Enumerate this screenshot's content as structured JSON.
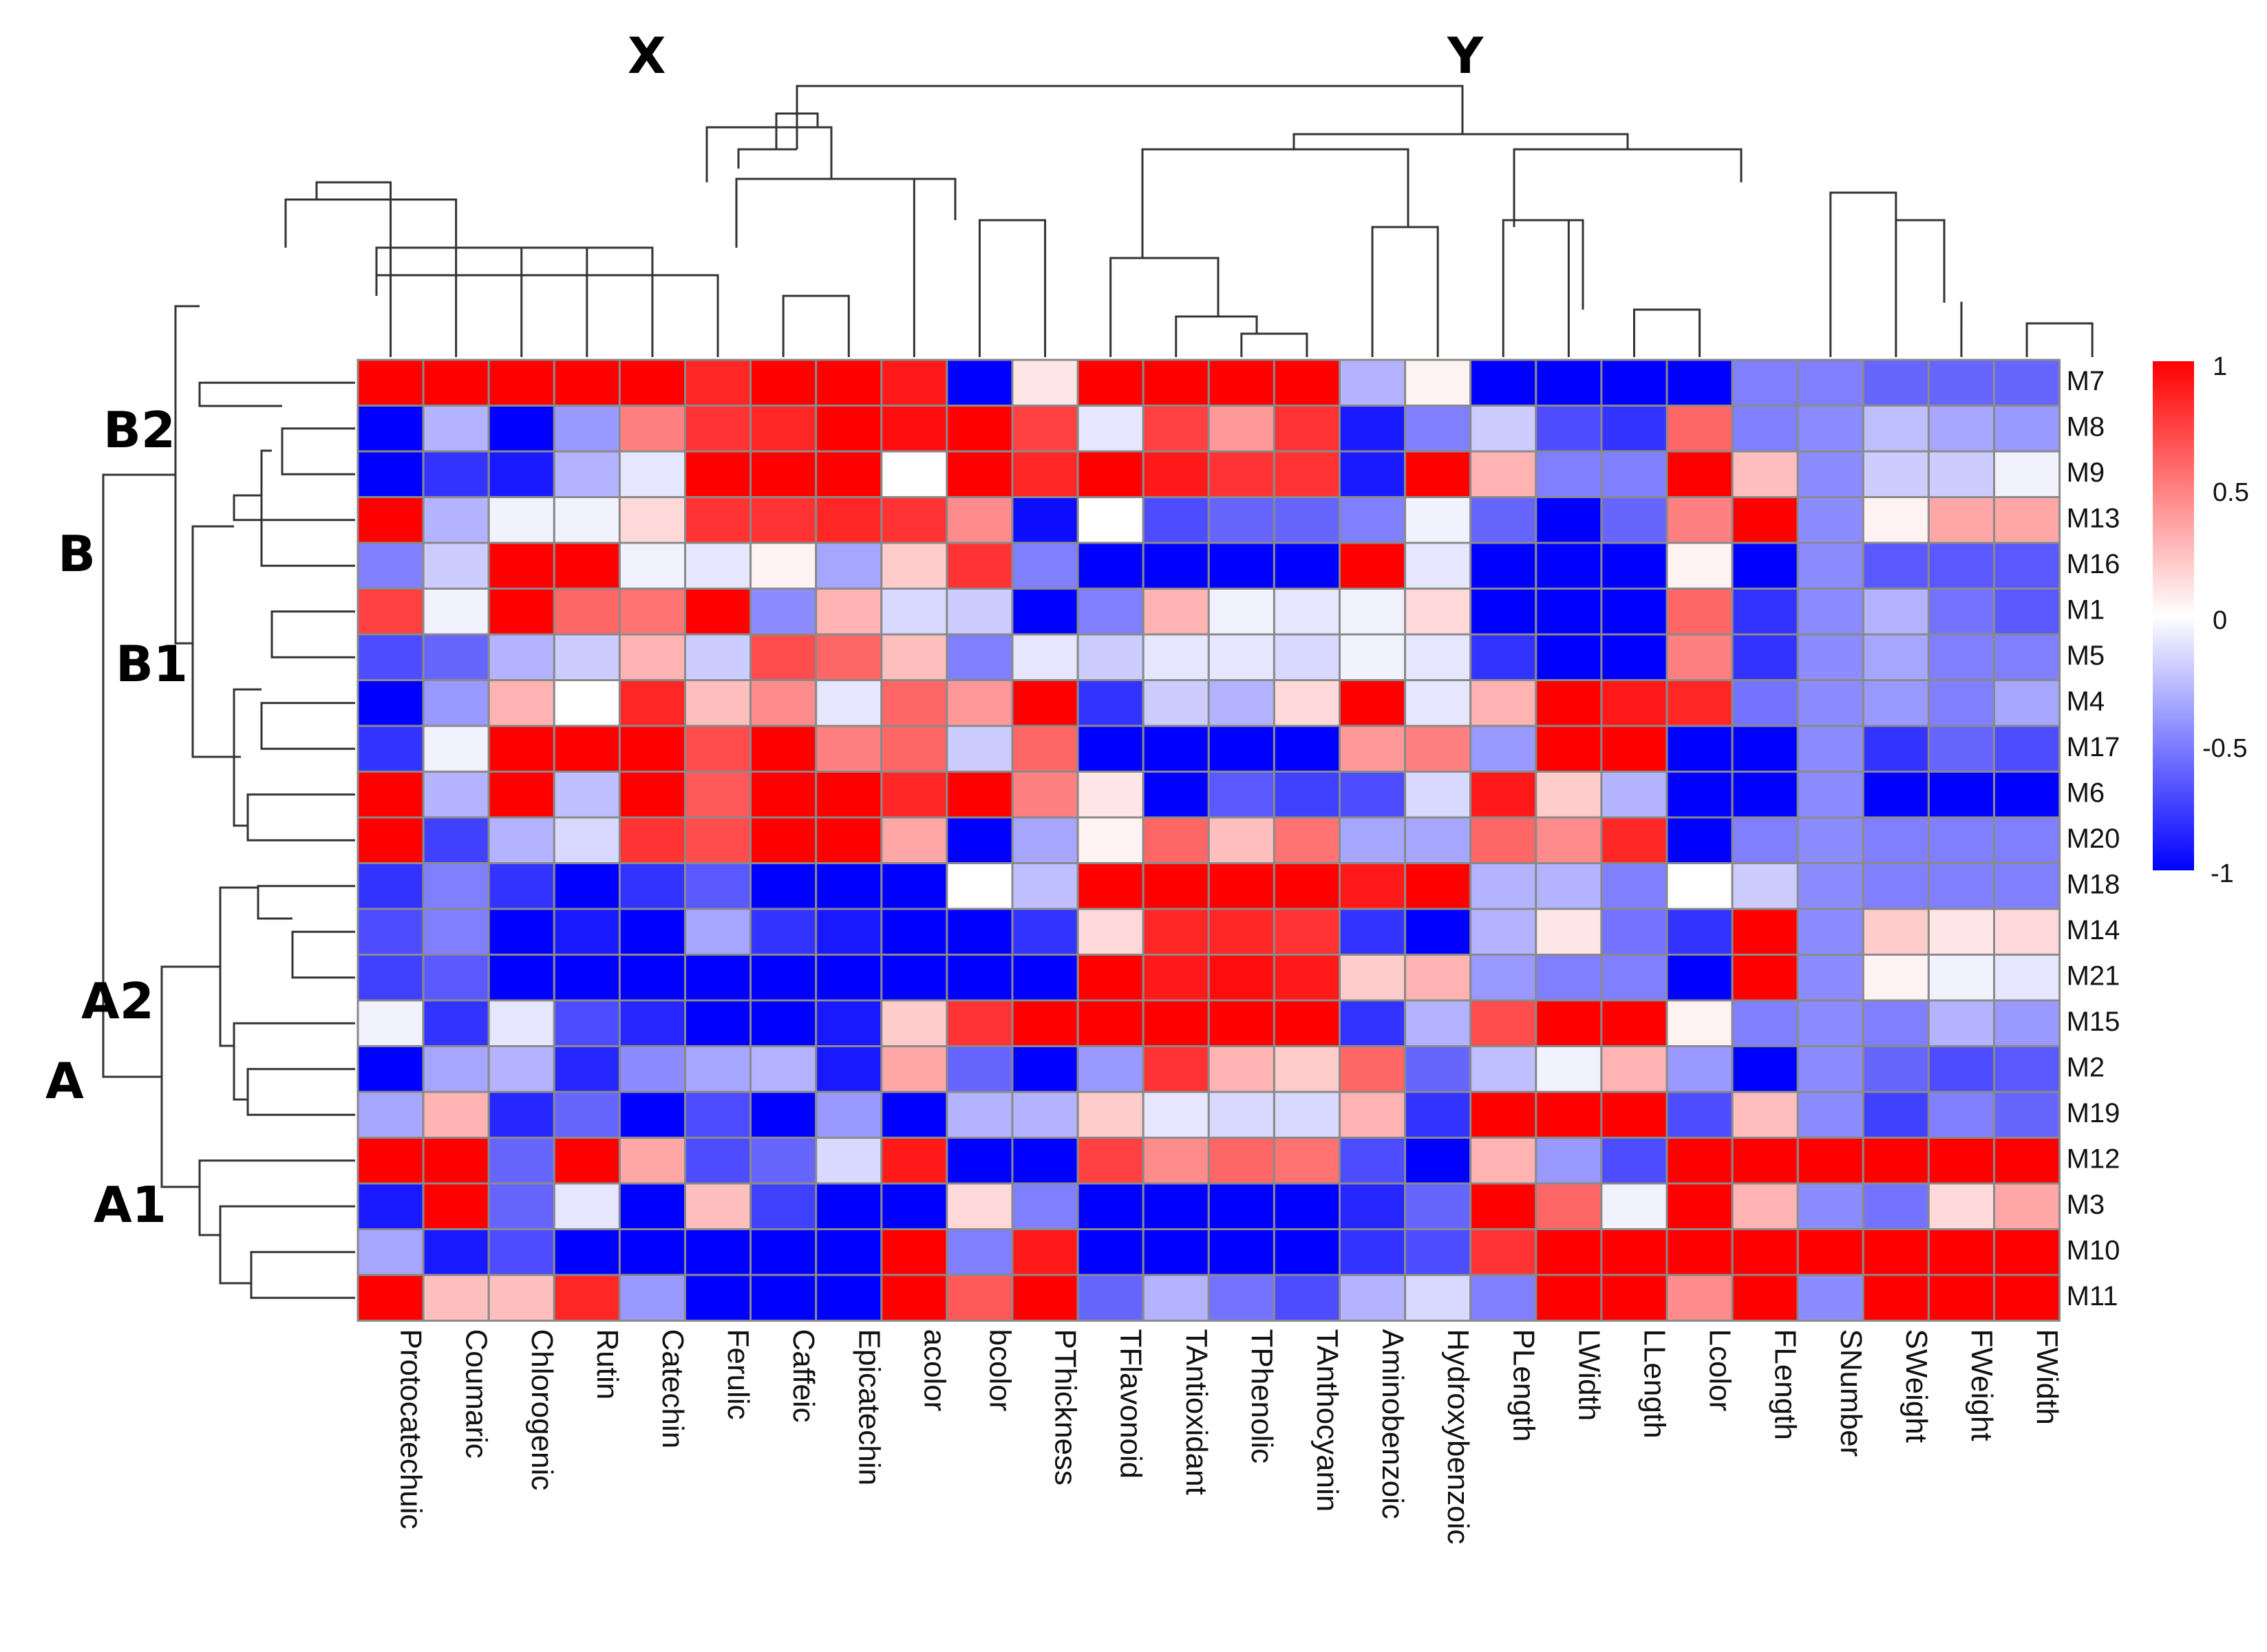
{
  "chart_data": {
    "type": "heatmap",
    "rows": [
      "M7",
      "M8",
      "M9",
      "M13",
      "M16",
      "M1",
      "M5",
      "M4",
      "M17",
      "M6",
      "M20",
      "M18",
      "M14",
      "M21",
      "M15",
      "M2",
      "M19",
      "M12",
      "M3",
      "M10",
      "M11"
    ],
    "columns": [
      "Protocatechuic",
      "Coumaric",
      "Chlorogenic",
      "Rutin",
      "Catechin",
      "Ferulic",
      "Caffeic",
      "Epicatechin",
      "acolor",
      "bcolor",
      "PThickness",
      "TFlavonoid",
      "TAntioxidant",
      "TPhenolic",
      "TAnthocyanin",
      "Aminobenzoic",
      "Hydroxybenzoic",
      "PLength",
      "LWidth",
      "LLength",
      "Lcolor",
      "FLength",
      "SNumber",
      "SWeight",
      "FWeight",
      "FWidth"
    ],
    "values": [
      [
        1,
        1,
        1,
        1,
        1,
        0.85,
        1,
        1,
        0.9,
        -1,
        0.1,
        1,
        1,
        1,
        1,
        -0.3,
        0.05,
        -1,
        -1,
        -1,
        -1,
        -0.5,
        -0.5,
        -0.6,
        -0.6,
        -0.6
      ],
      [
        -1,
        -0.3,
        -1,
        -0.4,
        0.5,
        0.8,
        0.85,
        1,
        0.95,
        1,
        0.75,
        -0.1,
        0.75,
        0.4,
        0.8,
        -0.9,
        -0.5,
        -0.2,
        -0.7,
        -0.8,
        0.6,
        -0.5,
        -0.45,
        -0.25,
        -0.35,
        -0.4
      ],
      [
        -1,
        -0.8,
        -0.9,
        -0.3,
        -0.1,
        1,
        1,
        1,
        0,
        1,
        0.85,
        1,
        0.9,
        0.8,
        0.8,
        -0.9,
        1,
        0.3,
        -0.5,
        -0.5,
        1,
        0.25,
        -0.45,
        -0.2,
        -0.2,
        -0.05
      ],
      [
        1,
        -0.3,
        -0.05,
        -0.05,
        0.15,
        0.8,
        0.8,
        0.85,
        0.8,
        0.45,
        -0.95,
        0,
        -0.7,
        -0.6,
        -0.6,
        -0.5,
        -0.05,
        -0.6,
        -1,
        -0.6,
        0.5,
        1,
        -0.45,
        0.05,
        0.35,
        0.35
      ],
      [
        -0.5,
        -0.2,
        1,
        1,
        -0.05,
        -0.1,
        0.05,
        -0.35,
        0.2,
        0.8,
        -0.5,
        -1,
        -1,
        -1,
        -1,
        1,
        -0.1,
        -1,
        -1,
        -1,
        0.05,
        -1,
        -0.45,
        -0.65,
        -0.65,
        -0.65
      ],
      [
        0.75,
        -0.05,
        1,
        0.6,
        0.55,
        1,
        -0.45,
        0.3,
        -0.15,
        -0.2,
        -1,
        -0.5,
        0.3,
        -0.05,
        -0.1,
        -0.05,
        0.15,
        -1,
        -1,
        -1,
        0.6,
        -0.8,
        -0.45,
        -0.3,
        -0.55,
        -0.65
      ],
      [
        -0.7,
        -0.6,
        -0.3,
        -0.2,
        0.3,
        -0.2,
        0.7,
        0.6,
        0.25,
        -0.5,
        -0.1,
        -0.2,
        -0.1,
        -0.1,
        -0.15,
        -0.05,
        -0.1,
        -0.8,
        -1,
        -1,
        0.5,
        -0.8,
        -0.45,
        -0.35,
        -0.5,
        -0.5
      ],
      [
        -1,
        -0.4,
        0.3,
        0,
        0.85,
        0.25,
        0.45,
        -0.1,
        0.6,
        0.4,
        1,
        -0.8,
        -0.2,
        -0.3,
        0.15,
        1,
        -0.1,
        0.3,
        1,
        0.9,
        0.85,
        -0.55,
        -0.45,
        -0.4,
        -0.5,
        -0.35
      ],
      [
        -0.8,
        -0.05,
        1,
        1,
        1,
        0.7,
        1,
        0.5,
        0.6,
        -0.2,
        0.6,
        -1,
        -1,
        -1,
        -1,
        0.4,
        0.5,
        -0.4,
        1,
        1,
        -1,
        -1,
        -0.45,
        -0.8,
        -0.6,
        -0.7
      ],
      [
        1,
        -0.3,
        1,
        -0.25,
        1,
        0.65,
        1,
        1,
        0.85,
        1,
        0.5,
        0.1,
        -1,
        -0.65,
        -0.75,
        -0.7,
        -0.15,
        0.9,
        0.2,
        -0.3,
        -1,
        -1,
        -0.45,
        -1,
        -1,
        -1
      ],
      [
        1,
        -0.75,
        -0.3,
        -0.15,
        0.8,
        0.7,
        1,
        1,
        0.35,
        -1,
        -0.35,
        0.05,
        0.6,
        0.25,
        0.55,
        -0.35,
        -0.35,
        0.6,
        0.45,
        0.85,
        -1,
        -0.5,
        -0.45,
        -0.5,
        -0.5,
        -0.5
      ],
      [
        -0.8,
        -0.5,
        -0.8,
        -1,
        -0.8,
        -0.65,
        -1,
        -1,
        -1,
        0,
        -0.25,
        1,
        1,
        1,
        1,
        0.9,
        1,
        -0.3,
        -0.3,
        -0.5,
        0,
        -0.2,
        -0.45,
        -0.5,
        -0.5,
        -0.5
      ],
      [
        -0.7,
        -0.5,
        -1,
        -0.9,
        -1,
        -0.35,
        -0.8,
        -0.9,
        -1,
        -1,
        -0.8,
        0.15,
        0.85,
        0.85,
        0.8,
        -0.8,
        -1,
        -0.3,
        0.1,
        -0.55,
        -0.8,
        1,
        -0.45,
        0.2,
        0.1,
        0.15
      ],
      [
        -0.75,
        -0.65,
        -1,
        -1,
        -1,
        -1,
        -1,
        -1,
        -1,
        -1,
        -1,
        1,
        0.9,
        0.95,
        0.9,
        0.2,
        0.3,
        -0.4,
        -0.5,
        -0.5,
        -1,
        1,
        -0.45,
        0.05,
        -0.05,
        -0.1
      ],
      [
        -0.05,
        -0.8,
        -0.1,
        -0.7,
        -0.85,
        -1,
        -1,
        -0.9,
        0.2,
        0.8,
        1,
        1,
        1,
        1,
        1,
        -0.8,
        -0.3,
        0.7,
        1,
        1,
        0.05,
        -0.5,
        -0.45,
        -0.5,
        -0.3,
        -0.4
      ],
      [
        -1,
        -0.35,
        -0.3,
        -0.85,
        -0.45,
        -0.35,
        -0.3,
        -0.9,
        0.35,
        -0.6,
        -1,
        -0.4,
        0.8,
        0.3,
        0.2,
        0.6,
        -0.6,
        -0.25,
        -0.05,
        0.3,
        -0.4,
        -1,
        -0.45,
        -0.6,
        -0.7,
        -0.65
      ],
      [
        -0.35,
        0.3,
        -0.85,
        -0.6,
        -1,
        -0.7,
        -1,
        -0.4,
        -1,
        -0.3,
        -0.3,
        0.2,
        -0.1,
        -0.15,
        -0.15,
        0.3,
        -0.8,
        1,
        1,
        1,
        -0.7,
        0.25,
        -0.45,
        -0.75,
        -0.5,
        -0.6
      ],
      [
        1,
        1,
        -0.6,
        1,
        0.35,
        -0.7,
        -0.6,
        -0.15,
        0.9,
        -1,
        -1,
        0.75,
        0.45,
        0.6,
        0.55,
        -0.7,
        -1,
        0.3,
        -0.4,
        -0.7,
        1,
        1,
        1,
        1,
        1,
        1
      ],
      [
        -0.9,
        1,
        -0.6,
        -0.1,
        -1,
        0.25,
        -0.75,
        -1,
        -1,
        0.15,
        -0.5,
        -1,
        -1,
        -1,
        -1,
        -0.85,
        -0.6,
        1,
        0.6,
        -0.05,
        1,
        0.3,
        -0.45,
        -0.55,
        0.15,
        0.35
      ],
      [
        -0.35,
        -0.9,
        -0.7,
        -1,
        -1,
        -1,
        -1,
        -1,
        1,
        -0.5,
        0.9,
        -1,
        -1,
        -1,
        -1,
        -0.8,
        -0.7,
        0.8,
        1,
        1,
        1,
        1,
        1,
        1,
        1,
        1
      ],
      [
        1,
        0.25,
        0.25,
        0.85,
        -0.4,
        -1,
        -1,
        -1,
        1,
        0.65,
        1,
        -0.6,
        -0.3,
        -0.55,
        -0.7,
        -0.3,
        -0.15,
        -0.5,
        1,
        1,
        0.45,
        1,
        -0.45,
        1,
        1,
        1
      ]
    ],
    "colorbar": {
      "ticks": [
        "1",
        "0.5",
        "0",
        "-0.5",
        "-1"
      ],
      "min": -1,
      "max": 1
    },
    "colors": {
      "high": "#ff0000",
      "mid": "#ffffff",
      "low": "#0000ff"
    },
    "cluster_labels": {
      "column_clusters": [
        "X",
        "Y"
      ],
      "row_clusters": [
        "B2",
        "B",
        "B1",
        "A2",
        "A",
        "A1"
      ]
    }
  }
}
